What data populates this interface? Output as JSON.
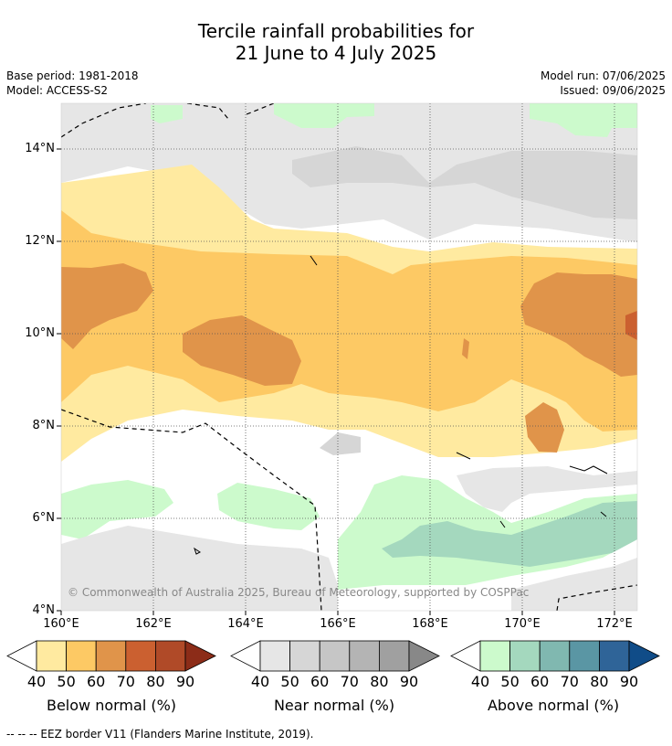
{
  "title_line1": "Tercile rainfall probabilities for",
  "title_line2": "21 June to 4 July 2025",
  "base_period": "Base period: 1981-2018",
  "model": "Model: ACCESS-S2",
  "model_run": "Model run: 07/06/2025",
  "issued": "Issued: 09/06/2025",
  "copyright": "© Commonwealth of Australia 2025, Bureau of Meteorology, supported by COSPPac",
  "lat_labels": [
    "14°N",
    "12°N",
    "10°N",
    "8°N",
    "6°N",
    "4°N"
  ],
  "lon_labels": [
    "160°E",
    "162°E",
    "164°E",
    "166°E",
    "168°E",
    "170°E",
    "172°E"
  ],
  "colorbars": [
    {
      "label": "Below normal (%)",
      "colors": [
        "#ffeaa0",
        "#fdc964",
        "#e0944a",
        "#cb6030",
        "#b04a28",
        "#8c2c18"
      ],
      "ticks": [
        "40",
        "50",
        "60",
        "70",
        "80",
        "90"
      ]
    },
    {
      "label": "Near normal (%)",
      "colors": [
        "#e6e6e6",
        "#d6d6d6",
        "#c6c6c6",
        "#b4b4b4",
        "#a0a0a0",
        "#888888"
      ],
      "ticks": [
        "40",
        "50",
        "60",
        "70",
        "80",
        "90"
      ]
    },
    {
      "label": "Above normal (%)",
      "colors": [
        "#ccfacc",
        "#a4d8be",
        "#80b8b0",
        "#5a96a4",
        "#2f6498",
        "#104c88"
      ],
      "ticks": [
        "40",
        "50",
        "60",
        "70",
        "80",
        "90"
      ]
    }
  ],
  "footer": "--  --  -- EEZ border V11 (Flanders Marine Institute, 2019)."
}
